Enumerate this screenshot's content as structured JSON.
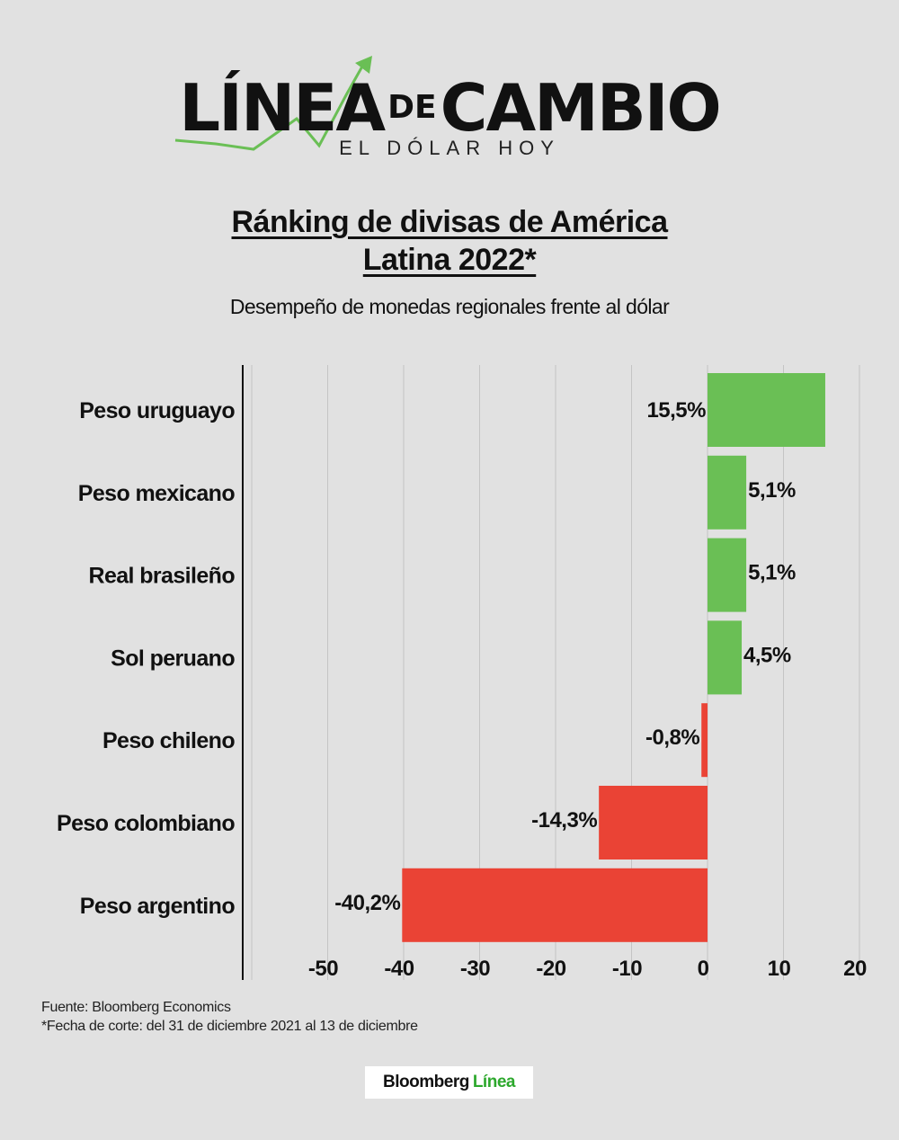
{
  "brand": {
    "name_part1": "LÍNEA",
    "name_part2": "DE",
    "name_part3": "CAMBIO",
    "tagline": "EL DÓLAR HOY"
  },
  "header": {
    "title_line1": "Ránking de divisas de América",
    "title_line2": "Latina 2022*",
    "subtitle": "Desempeño de monedas regionales frente al dólar"
  },
  "chart_data": {
    "type": "bar",
    "orientation": "horizontal",
    "title": "Ránking de divisas de América Latina 2022*",
    "subtitle": "Desempeño de monedas regionales frente al dólar",
    "categories": [
      "Peso uruguayo",
      "Peso mexicano",
      "Real brasileño",
      "Sol peruano",
      "Peso chileno",
      "Peso colombiano",
      "Peso argentino"
    ],
    "values": [
      15.5,
      5.1,
      5.1,
      4.5,
      -0.8,
      -14.3,
      -40.2
    ],
    "value_labels": [
      "15,5%",
      "5,1%",
      "5,1%",
      "4,5%",
      "-0,8%",
      "-14,3%",
      "-40,2%"
    ],
    "xlim": [
      -60,
      20
    ],
    "xticks": [
      -50,
      -40,
      -30,
      -20,
      -10,
      0,
      10,
      20
    ],
    "xtick_labels": [
      "-50",
      "-40",
      "-30",
      "-20",
      "-10",
      "0",
      "10",
      "20"
    ],
    "grid": true,
    "colors": {
      "positive": "#6abf55",
      "negative": "#ea4335"
    }
  },
  "footer": {
    "source": "Fuente: Bloomberg Economics",
    "note": "*Fecha de corte: del 31 de diciembre 2021 al 13 de diciembre",
    "logo_text": "Bloomberg",
    "logo_accent": "Línea"
  },
  "colors": {
    "background": "#e1e1e1",
    "accent_green": "#2da82d"
  }
}
